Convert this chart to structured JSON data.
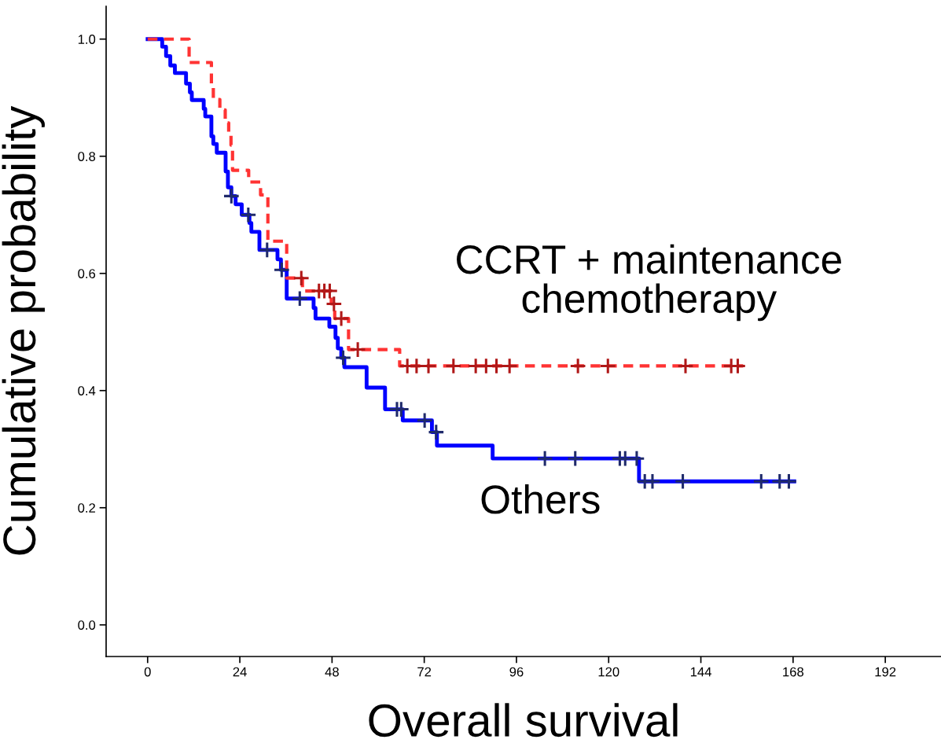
{
  "chart_data": {
    "type": "step",
    "xlabel": "Overall survival",
    "ylabel": "Cumulative probability",
    "xlim": [
      -10.8,
      206.5
    ],
    "ylim": [
      -0.054,
      1.056
    ],
    "xticks": [
      0,
      24,
      48,
      72,
      96,
      120,
      144,
      168,
      192
    ],
    "yticks": [
      {
        "value": 0.0,
        "label": "0.0"
      },
      {
        "value": 0.2,
        "label": "0.2"
      },
      {
        "value": 0.4,
        "label": "0.4"
      },
      {
        "value": 0.6,
        "label": "0.6"
      },
      {
        "value": 0.8,
        "label": "0.8"
      },
      {
        "value": 1.0,
        "label": "1.0"
      }
    ],
    "grid": false,
    "legend": false,
    "series": [
      {
        "name": "Others",
        "color": "#0000ff",
        "line_style": "solid",
        "x": [
          0,
          3.8,
          4.8,
          5.9,
          7.1,
          10.0,
          11.0,
          11.5,
          14.6,
          15.0,
          16.6,
          17.1,
          18.0,
          20.3,
          20.9,
          21.8,
          22.9,
          24.5,
          26.5,
          27.0,
          29.1,
          33.8,
          34.7,
          36.2,
          43.2,
          43.7,
          47.3,
          48.9,
          49.5,
          50.4,
          51.2,
          57.0,
          61.8,
          66.4,
          74.0,
          75.3,
          89.8,
          127.9,
          168.3
        ],
        "values": [
          1.0,
          0.987,
          0.971,
          0.955,
          0.942,
          0.924,
          0.909,
          0.896,
          0.881,
          0.868,
          0.834,
          0.821,
          0.806,
          0.774,
          0.747,
          0.732,
          0.718,
          0.7,
          0.686,
          0.671,
          0.64,
          0.624,
          0.606,
          0.557,
          0.541,
          0.523,
          0.509,
          0.49,
          0.472,
          0.456,
          0.44,
          0.405,
          0.368,
          0.349,
          0.329,
          0.306,
          0.284,
          0.245,
          0.245
        ]
      },
      {
        "name": "CCRT + maintenance chemotherapy",
        "color": "#ff3333",
        "line_style": "dashed",
        "x": [
          0,
          10.8,
          16.6,
          17.1,
          18.8,
          20.2,
          21.1,
          21.7,
          22.1,
          26.3,
          29.4,
          31.3,
          36.2,
          40.3,
          47.8,
          48.7,
          52.3,
          65.6,
          155.0
        ],
        "values": [
          1.0,
          0.96,
          0.919,
          0.897,
          0.879,
          0.857,
          0.839,
          0.819,
          0.776,
          0.756,
          0.734,
          0.655,
          0.592,
          0.57,
          0.548,
          0.523,
          0.47,
          0.442,
          0.442
        ]
      },
      {
        "type": "scatter",
        "color": "#1f2a6b",
        "marker": "cross",
        "x": [
          21.8,
          26.2,
          31.1,
          34.9,
          39.6,
          50.9,
          64.9,
          66.0,
          72.1,
          75.1,
          103.4,
          111.3,
          122.9,
          124.3,
          127.3,
          129.4,
          131.4,
          139.3,
          159.7,
          164.5,
          166.9
        ],
        "values": [
          0.732,
          0.7,
          0.64,
          0.606,
          0.557,
          0.456,
          0.368,
          0.368,
          0.349,
          0.329,
          0.284,
          0.284,
          0.284,
          0.284,
          0.284,
          0.245,
          0.245,
          0.245,
          0.245,
          0.245,
          0.245
        ]
      },
      {
        "type": "scatter",
        "color": "#b01818",
        "marker": "cross",
        "x": [
          40.0,
          44.6,
          46.0,
          47.4,
          48.5,
          50.4,
          54.7,
          67.6,
          70.0,
          73.1,
          79.6,
          85.4,
          88.1,
          90.8,
          94.2,
          112.0,
          119.8,
          140.0,
          151.9,
          153.6
        ],
        "values": [
          0.592,
          0.57,
          0.57,
          0.57,
          0.548,
          0.523,
          0.47,
          0.442,
          0.442,
          0.442,
          0.442,
          0.442,
          0.442,
          0.442,
          0.442,
          0.442,
          0.442,
          0.442,
          0.442,
          0.442
        ]
      }
    ]
  }
}
